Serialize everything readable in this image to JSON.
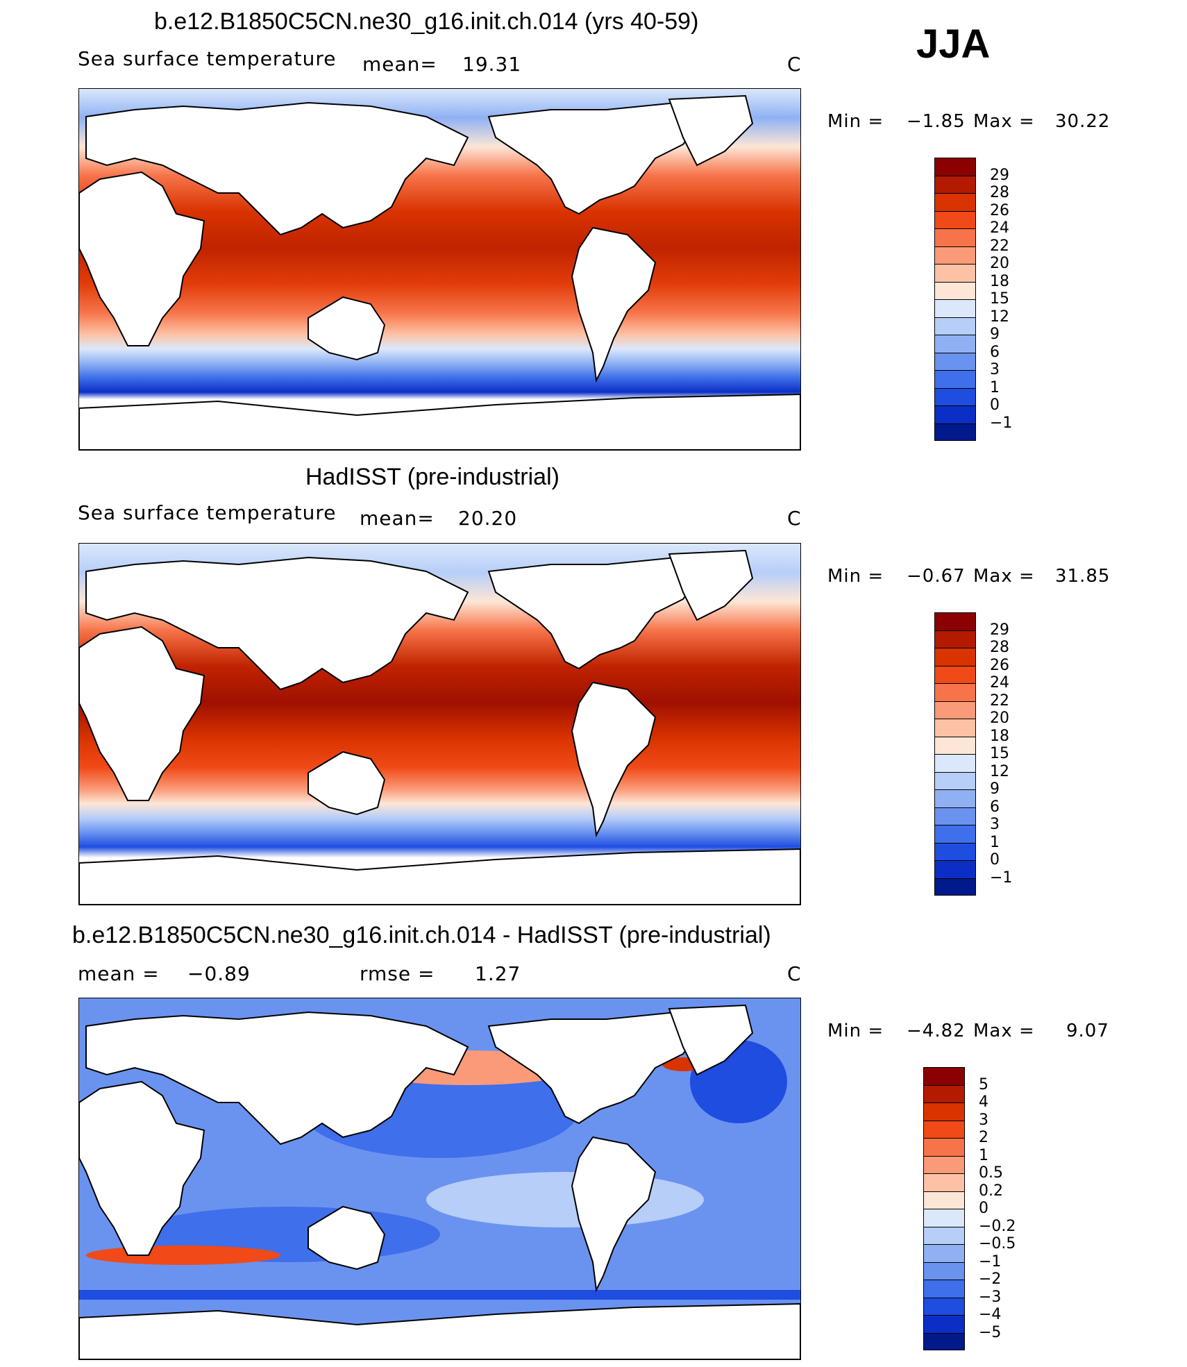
{
  "season": "JJA",
  "panels": [
    {
      "title": "b.e12.B1850C5CN.ne30_g16.init.ch.014 (yrs 40-59)",
      "left_label": "Sea surface temperature",
      "mid_label": "mean=",
      "mid_value": "19.31",
      "units": "C",
      "min_label": "Min =",
      "min_value": "−1.85",
      "max_label": "Max =",
      "max_value": "30.22",
      "kind": "abs",
      "colorbar_labels": [
        "29",
        "28",
        "26",
        "24",
        "22",
        "20",
        "18",
        "15",
        "12",
        "9",
        "6",
        "3",
        "1",
        "0",
        "−1"
      ]
    },
    {
      "title": "HadISST (pre-industrial)",
      "left_label": "Sea surface temperature",
      "mid_label": "mean=",
      "mid_value": "20.20",
      "units": "C",
      "min_label": "Min =",
      "min_value": "−0.67",
      "max_label": "Max =",
      "max_value": "31.85",
      "kind": "abs",
      "colorbar_labels": [
        "29",
        "28",
        "26",
        "24",
        "22",
        "20",
        "18",
        "15",
        "12",
        "9",
        "6",
        "3",
        "1",
        "0",
        "−1"
      ]
    },
    {
      "title": "b.e12.B1850C5CN.ne30_g16.init.ch.014 - HadISST (pre-industrial)",
      "left_label": "mean =",
      "left_value": "−0.89",
      "mid_label": "rmse =",
      "mid_value": "1.27",
      "units": "C",
      "min_label": "Min =",
      "min_value": "−4.82",
      "max_label": "Max =",
      "max_value": "9.07",
      "kind": "diff",
      "colorbar_labels": [
        "5",
        "4",
        "3",
        "2",
        "1",
        "0.5",
        "0.2",
        "0",
        "−0.2",
        "−0.5",
        "−1",
        "−2",
        "−3",
        "−4",
        "−5"
      ]
    }
  ],
  "colors": {
    "abs_scale": [
      "#8b0000",
      "#b31a00",
      "#d93300",
      "#f04a18",
      "#f7744a",
      "#fb9a78",
      "#fdc2a6",
      "#fde6d6",
      "#dbe8fb",
      "#b6cef8",
      "#8fb1f4",
      "#6a93f0",
      "#3f6fea",
      "#1f4de0",
      "#0b2fc6",
      "#001a8c"
    ],
    "diff_scale": [
      "#8b0000",
      "#b31a00",
      "#d93300",
      "#f04a18",
      "#f7744a",
      "#fb9a78",
      "#fdc2a6",
      "#fde6d6",
      "#dbe8fb",
      "#b6cef8",
      "#8fb1f4",
      "#6a93f0",
      "#3f6fea",
      "#1f4de0",
      "#0b2fc6",
      "#001a8c"
    ]
  }
}
